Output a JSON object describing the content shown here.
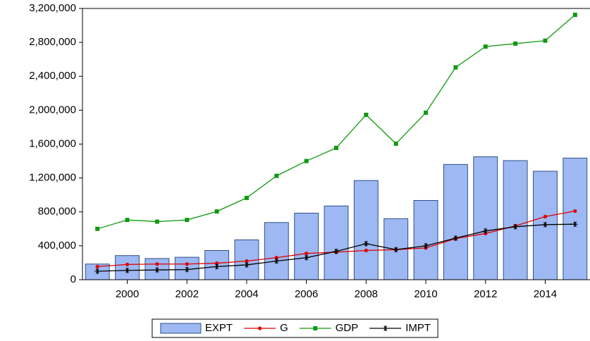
{
  "chart_data": {
    "type": "combo",
    "x": [
      1999,
      2000,
      2001,
      2002,
      2003,
      2004,
      2005,
      2006,
      2007,
      2008,
      2009,
      2010,
      2011,
      2012,
      2013,
      2014,
      2015
    ],
    "xlim": [
      1998.5,
      2015.5
    ],
    "xticks": [
      2000,
      2002,
      2004,
      2006,
      2008,
      2010,
      2012,
      2014
    ],
    "ylim": [
      0,
      3200000
    ],
    "yticks": [
      0,
      {
        "value": 400000,
        "label": "400,000"
      },
      {
        "value": 800000,
        "label": "800,000"
      },
      {
        "value": 1200000,
        "label": "1,200,000"
      },
      {
        "value": 1600000,
        "label": "1,600,000"
      },
      {
        "value": 2000000,
        "label": "2,000,000"
      },
      {
        "value": 2400000,
        "label": "2,400,000"
      },
      {
        "value": 2800000,
        "label": "2,800,000"
      },
      {
        "value": 3200000,
        "label": "3,200,000"
      }
    ],
    "legend": "bottom",
    "series": [
      {
        "name": "EXPT",
        "type": "bar",
        "color": "#9db8f2",
        "values": [
          185000,
          285000,
          250000,
          265000,
          345000,
          470000,
          675000,
          785000,
          870000,
          1170000,
          720000,
          935000,
          1360000,
          1450000,
          1405000,
          1280000,
          1435000
        ]
      },
      {
        "name": "G",
        "type": "line",
        "marker": "circle",
        "color": "#e00000",
        "values": [
          155000,
          180000,
          185000,
          185000,
          195000,
          220000,
          260000,
          310000,
          325000,
          345000,
          355000,
          375000,
          485000,
          545000,
          635000,
          745000,
          810000
        ]
      },
      {
        "name": "GDP",
        "type": "line",
        "marker": "square",
        "color": "#0f990f",
        "values": [
          600000,
          705000,
          685000,
          705000,
          805000,
          965000,
          1225000,
          1400000,
          1555000,
          1945000,
          1605000,
          1970000,
          2505000,
          2750000,
          2785000,
          2820000,
          3125000
        ]
      },
      {
        "name": "IMPT",
        "type": "line",
        "marker": "asterisk",
        "color": "#000000",
        "values": [
          100000,
          110000,
          115000,
          120000,
          155000,
          175000,
          220000,
          260000,
          335000,
          425000,
          355000,
          400000,
          490000,
          575000,
          625000,
          650000,
          655000
        ]
      }
    ]
  }
}
